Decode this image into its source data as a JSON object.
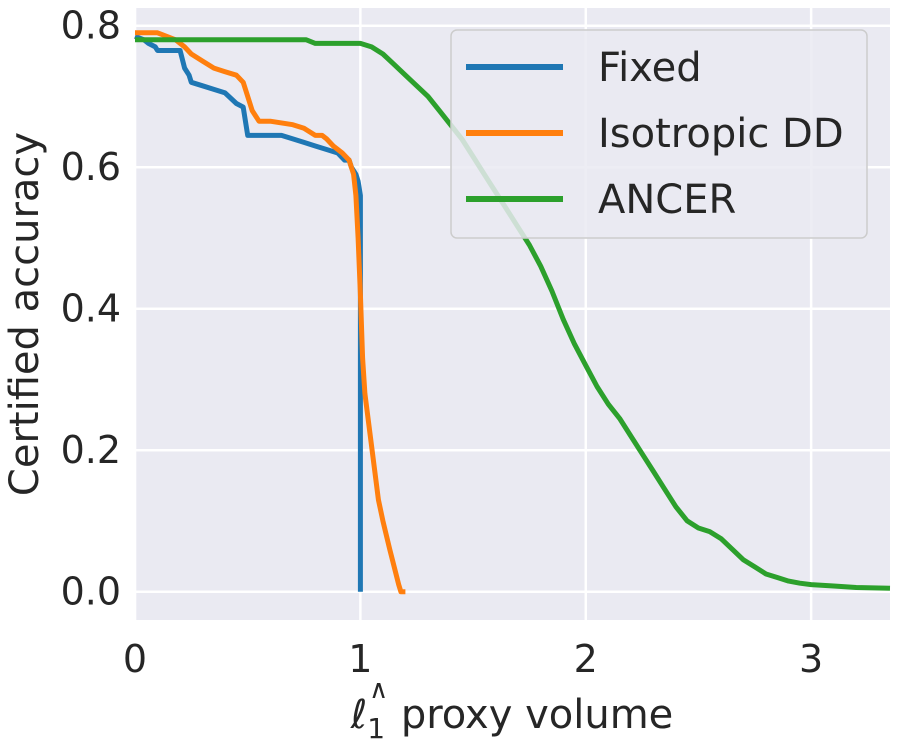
{
  "chart_data": {
    "type": "line",
    "title": "",
    "xlabel_main": "ℓ",
    "xlabel_sub": "1",
    "xlabel_sup": "∧",
    "xlabel_rest": " proxy volume",
    "ylabel": "Certified accuracy",
    "xlim": [
      0,
      3.35
    ],
    "ylim": [
      -0.04,
      0.825
    ],
    "x_ticks": [
      0,
      1,
      2,
      3
    ],
    "x_tick_labels": [
      "0",
      "1",
      "2",
      "3"
    ],
    "y_ticks": [
      0.0,
      0.2,
      0.4,
      0.6,
      0.8
    ],
    "y_tick_labels": [
      "0.0",
      "0.2",
      "0.4",
      "0.6",
      "0.8"
    ],
    "grid": true,
    "legend_position": "top-right",
    "series": [
      {
        "name": "Fixed",
        "color": "#1f77b4",
        "x": [
          0,
          0.04,
          0.06,
          0.09,
          0.1,
          0.13,
          0.2,
          0.22,
          0.24,
          0.25,
          0.3,
          0.35,
          0.4,
          0.45,
          0.48,
          0.5,
          0.6,
          0.65,
          0.7,
          0.75,
          0.8,
          0.85,
          0.9,
          0.93,
          0.95,
          0.96,
          0.98,
          0.99,
          1.0,
          1.0
        ],
        "y": [
          0.785,
          0.78,
          0.775,
          0.77,
          0.765,
          0.765,
          0.765,
          0.74,
          0.73,
          0.72,
          0.715,
          0.71,
          0.705,
          0.69,
          0.685,
          0.645,
          0.645,
          0.645,
          0.64,
          0.635,
          0.63,
          0.625,
          0.62,
          0.61,
          0.61,
          0.6,
          0.59,
          0.58,
          0.56,
          0.0
        ]
      },
      {
        "name": "Isotropic DD",
        "color": "#ff7f0e",
        "x": [
          0,
          0.1,
          0.18,
          0.22,
          0.25,
          0.3,
          0.35,
          0.4,
          0.45,
          0.48,
          0.5,
          0.52,
          0.55,
          0.6,
          0.7,
          0.75,
          0.8,
          0.83,
          0.85,
          0.88,
          0.92,
          0.95,
          0.97,
          0.98,
          0.99,
          1.0,
          1.01,
          1.02,
          1.04,
          1.06,
          1.08,
          1.1,
          1.13,
          1.15,
          1.17,
          1.18,
          1.2
        ],
        "y": [
          0.79,
          0.79,
          0.78,
          0.77,
          0.76,
          0.75,
          0.74,
          0.735,
          0.73,
          0.72,
          0.7,
          0.68,
          0.665,
          0.665,
          0.66,
          0.655,
          0.645,
          0.645,
          0.64,
          0.63,
          0.62,
          0.61,
          0.59,
          0.56,
          0.5,
          0.42,
          0.33,
          0.28,
          0.23,
          0.18,
          0.13,
          0.1,
          0.06,
          0.035,
          0.01,
          0.0,
          0.0
        ]
      },
      {
        "name": "ANCER",
        "color": "#2ca02c",
        "x": [
          0,
          0.5,
          0.76,
          0.8,
          1.0,
          1.05,
          1.1,
          1.15,
          1.2,
          1.25,
          1.3,
          1.35,
          1.4,
          1.45,
          1.5,
          1.55,
          1.6,
          1.65,
          1.7,
          1.75,
          1.8,
          1.85,
          1.9,
          1.95,
          2.0,
          2.05,
          2.1,
          2.15,
          2.2,
          2.25,
          2.3,
          2.35,
          2.4,
          2.45,
          2.5,
          2.55,
          2.6,
          2.65,
          2.7,
          2.75,
          2.8,
          2.85,
          2.9,
          2.95,
          3.0,
          3.1,
          3.2,
          3.35
        ],
        "y": [
          0.78,
          0.78,
          0.78,
          0.775,
          0.775,
          0.77,
          0.76,
          0.745,
          0.73,
          0.715,
          0.7,
          0.68,
          0.66,
          0.64,
          0.615,
          0.59,
          0.565,
          0.54,
          0.515,
          0.49,
          0.46,
          0.425,
          0.385,
          0.35,
          0.32,
          0.29,
          0.265,
          0.245,
          0.22,
          0.195,
          0.17,
          0.145,
          0.12,
          0.1,
          0.09,
          0.085,
          0.075,
          0.06,
          0.045,
          0.035,
          0.025,
          0.02,
          0.015,
          0.012,
          0.01,
          0.008,
          0.006,
          0.005
        ]
      }
    ]
  }
}
